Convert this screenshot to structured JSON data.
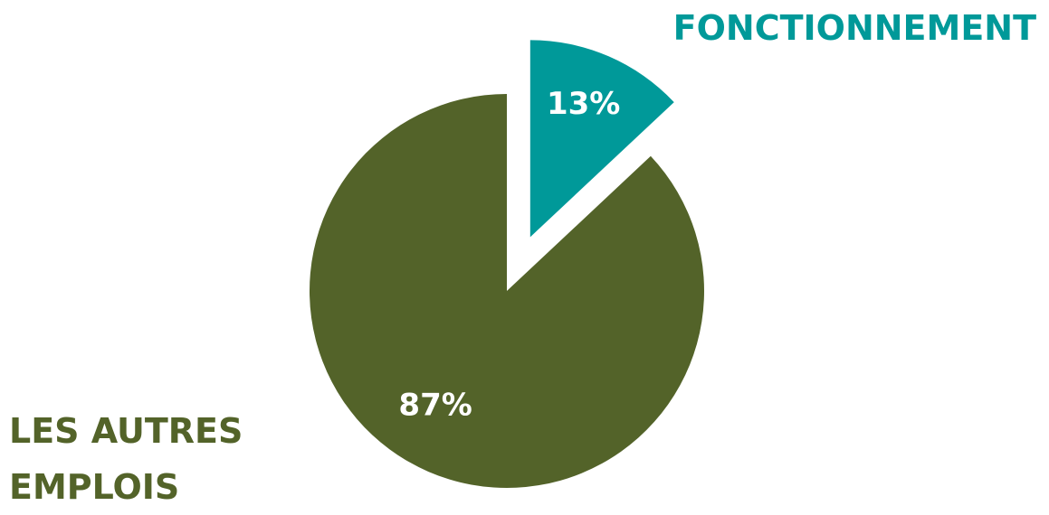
{
  "chart_data": {
    "type": "pie",
    "categories": [
      "FONCTIONNEMENT",
      "LES AUTRES EMPLOIS"
    ],
    "values": [
      13,
      87
    ],
    "value_labels": [
      "13%",
      "87%"
    ],
    "colors": [
      "#009999",
      "#536329"
    ],
    "exploded": [
      true,
      false
    ]
  }
}
